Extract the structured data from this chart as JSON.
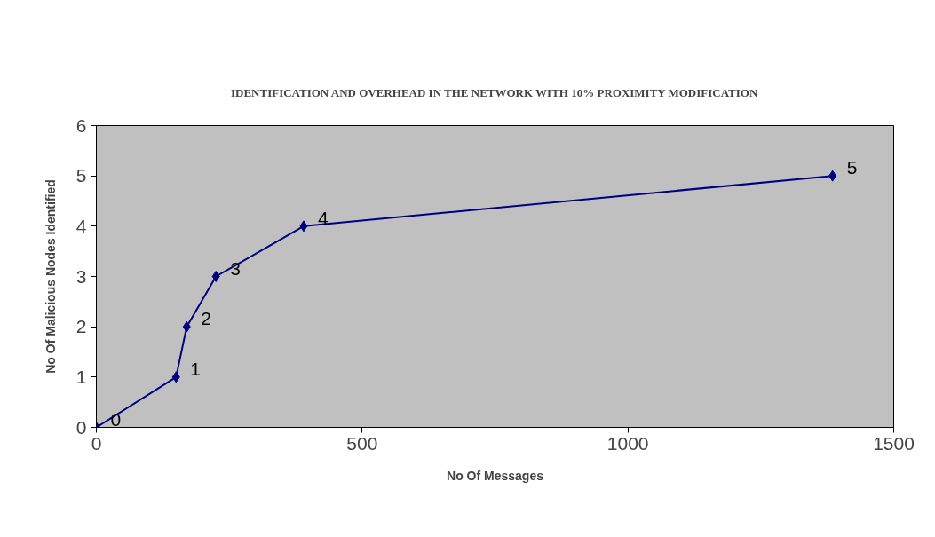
{
  "chart_data": {
    "type": "line",
    "title": "IDENTIFICATION AND OVERHEAD IN THE NETWORK WITH 10% PROXIMITY MODIFICATION",
    "xlabel": "No Of Messages",
    "ylabel": "No Of Malicious Nodes Identified",
    "x": [
      0,
      150,
      170,
      225,
      390,
      1385
    ],
    "series": [
      {
        "color": "#000080",
        "values": [
          0,
          1,
          2,
          3,
          4,
          5
        ]
      }
    ],
    "xlim": [
      0,
      1500
    ],
    "xticks": [
      0,
      500,
      1000,
      1500
    ],
    "ylim": [
      0,
      6
    ],
    "yticks": [
      0,
      1,
      2,
      3,
      4,
      5,
      6
    ],
    "data_labels": true,
    "marker": "diamond",
    "line_style": "solid",
    "grid": false
  }
}
